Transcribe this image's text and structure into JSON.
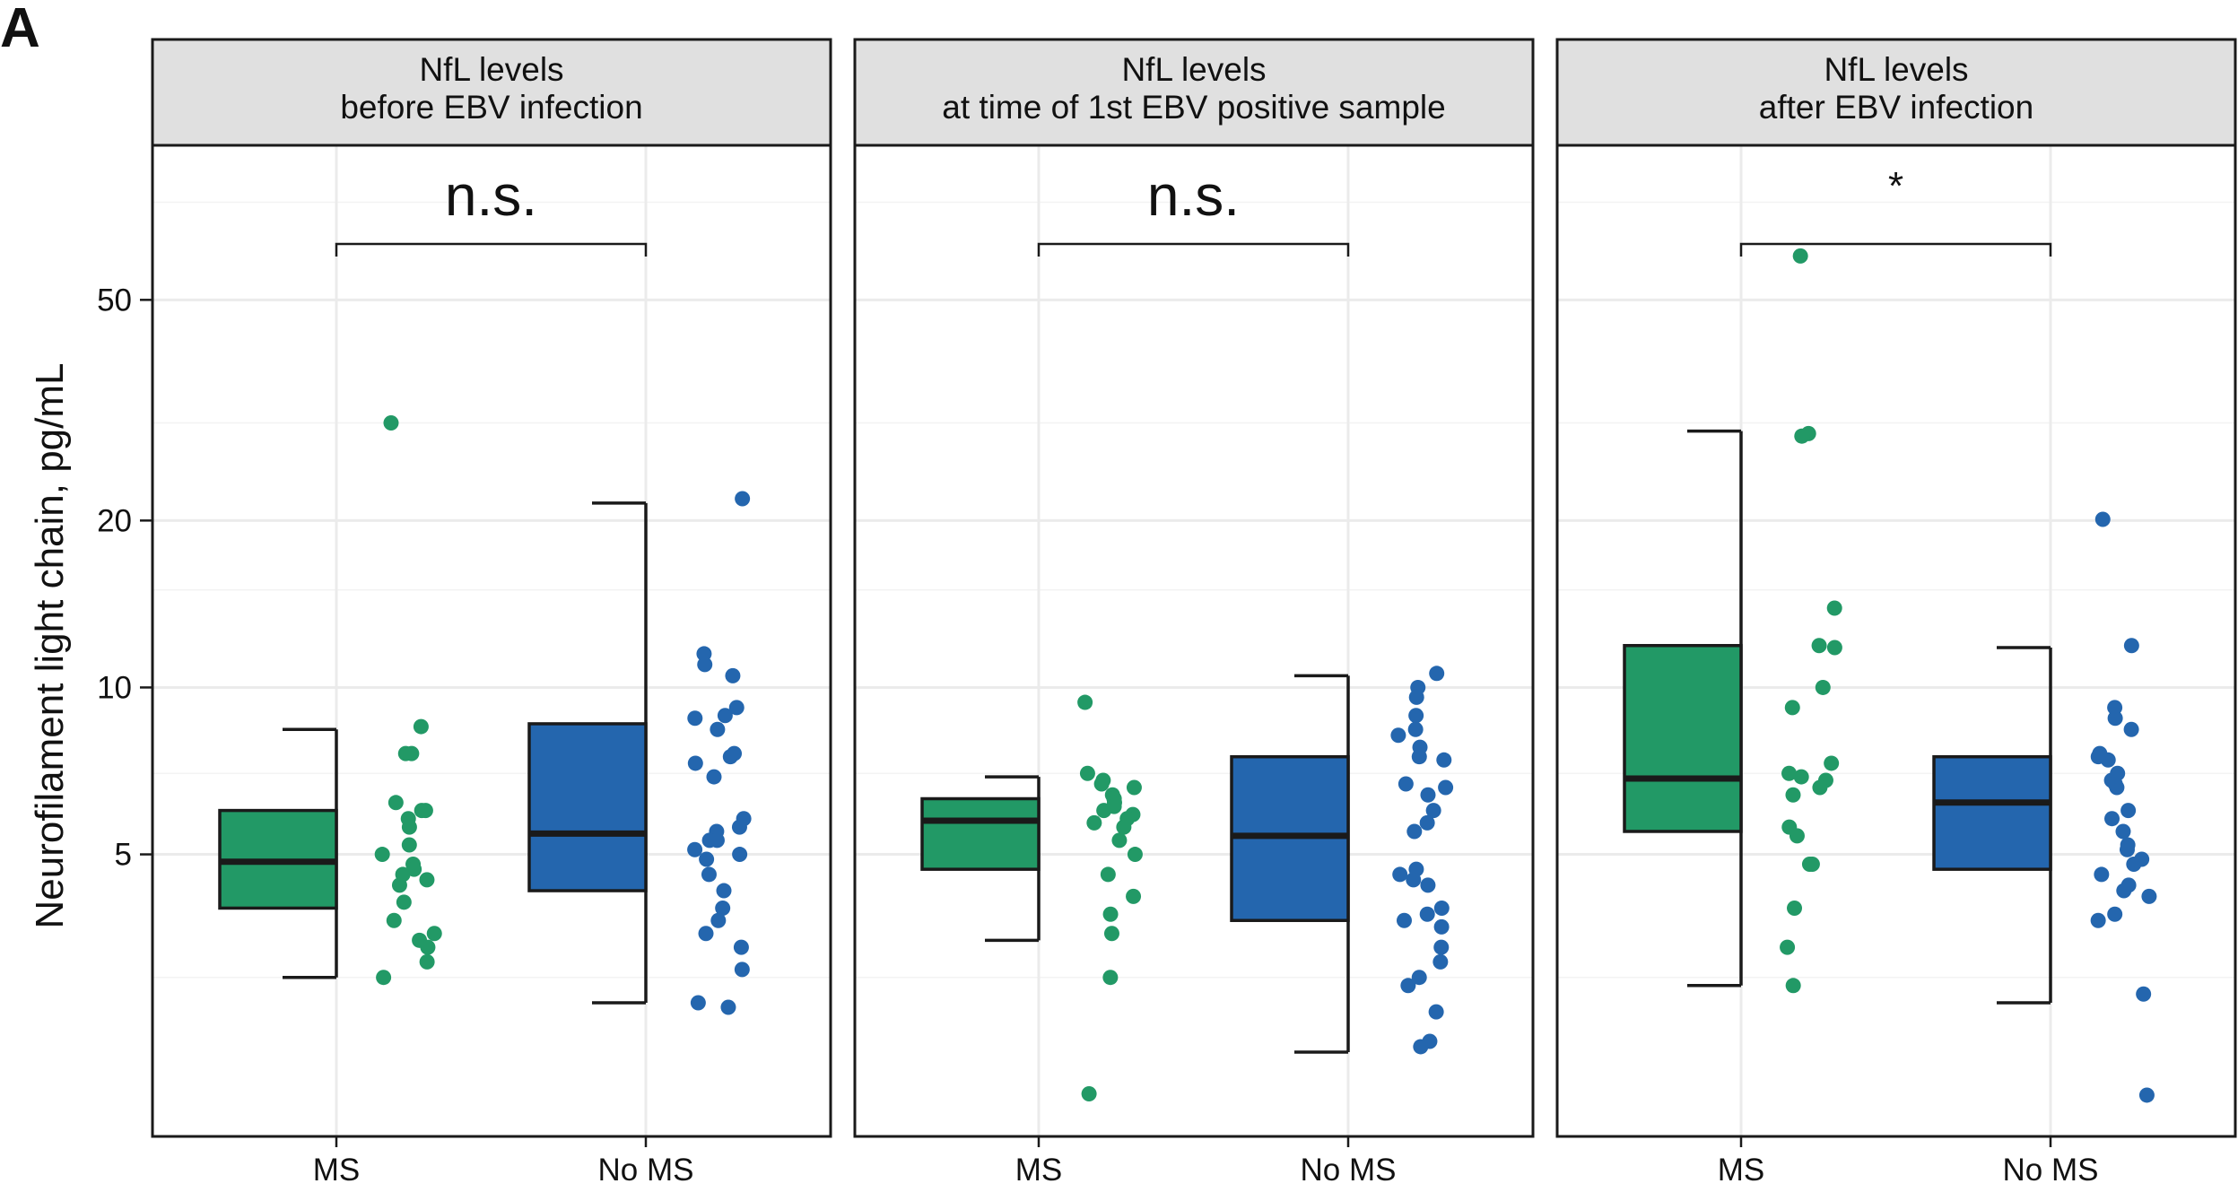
{
  "panel_letter": "A",
  "y_axis_label": "Neurofilament light chain, pg/mL",
  "colors": {
    "ms": "#229966",
    "no_ms": "#2466AE",
    "strip_bg": "#e0e0e0",
    "grid": "#ebebeb",
    "border": "#1a1a1a"
  },
  "chart_data": {
    "type": "box",
    "scale": "log",
    "ylabel": "Neurofilament light chain, pg/mL",
    "ylim": [
      1.55,
      95
    ],
    "yticks": [
      5,
      10,
      20,
      50
    ],
    "ytick_labels": [
      "5",
      "10",
      "20",
      "50"
    ],
    "categories": [
      "MS",
      "No MS"
    ],
    "panels": [
      {
        "strip_title": [
          "NfL levels",
          "before EBV infection"
        ],
        "significance": "n.s.",
        "groups": [
          {
            "name": "MS",
            "box": {
              "whisker_low": 3.0,
              "q1": 4.0,
              "median": 4.85,
              "q3": 6.0,
              "whisker_high": 8.4
            },
            "points": [
              30.0,
              8.5,
              7.6,
              7.6,
              6.2,
              6.0,
              6.0,
              5.8,
              5.6,
              5.2,
              5.0,
              4.8,
              4.7,
              4.6,
              4.5,
              4.4,
              4.1,
              3.8,
              3.6,
              3.5,
              3.4,
              3.2,
              3.0
            ]
          },
          {
            "name": "No MS",
            "box": {
              "whisker_low": 2.7,
              "q1": 4.3,
              "median": 5.45,
              "q3": 8.6,
              "whisker_high": 21.5
            },
            "points": [
              21.9,
              11.5,
              11.0,
              10.5,
              9.2,
              8.9,
              8.8,
              8.4,
              7.6,
              7.5,
              7.3,
              6.9,
              5.8,
              5.6,
              5.5,
              5.3,
              5.3,
              5.1,
              5.0,
              4.9,
              4.6,
              4.3,
              4.0,
              3.8,
              3.6,
              3.4,
              3.1,
              2.7,
              2.65
            ]
          }
        ]
      },
      {
        "strip_title": [
          "NfL levels",
          "at time of 1st EBV positive sample"
        ],
        "significance": "n.s.",
        "groups": [
          {
            "name": "MS",
            "box": {
              "whisker_low": 3.5,
              "q1": 4.7,
              "median": 5.75,
              "q3": 6.3,
              "whisker_high": 6.9
            },
            "points": [
              9.4,
              7.0,
              6.8,
              6.7,
              6.6,
              6.4,
              6.3,
              6.3,
              6.2,
              6.1,
              6.0,
              5.9,
              5.8,
              5.7,
              5.6,
              5.3,
              5.0,
              4.6,
              4.2,
              3.9,
              3.6,
              3.0,
              1.85
            ]
          },
          {
            "name": "No MS",
            "box": {
              "whisker_low": 2.2,
              "q1": 3.8,
              "median": 5.4,
              "q3": 7.5,
              "whisker_high": 10.5
            },
            "points": [
              10.6,
              10.0,
              9.6,
              8.9,
              8.4,
              8.2,
              7.8,
              7.5,
              7.4,
              6.7,
              6.6,
              6.4,
              6.0,
              5.7,
              5.5,
              4.7,
              4.6,
              4.5,
              4.4,
              4.0,
              3.9,
              3.8,
              3.7,
              3.4,
              3.2,
              3.0,
              2.9,
              2.6,
              2.3,
              2.25
            ]
          }
        ]
      },
      {
        "strip_title": [
          "NfL levels",
          "after EBV infection"
        ],
        "significance": "*",
        "groups": [
          {
            "name": "MS",
            "box": {
              "whisker_low": 2.9,
              "q1": 5.5,
              "median": 6.85,
              "q3": 11.9,
              "whisker_high": 29.0
            },
            "points": [
              60.0,
              28.7,
              28.4,
              13.9,
              11.9,
              11.8,
              10.0,
              9.2,
              7.3,
              7.0,
              6.9,
              6.8,
              6.6,
              6.4,
              5.6,
              5.4,
              4.8,
              4.8,
              4.0,
              3.4,
              2.9
            ]
          },
          {
            "name": "No MS",
            "box": {
              "whisker_low": 2.7,
              "q1": 4.7,
              "median": 6.2,
              "q3": 7.5,
              "whisker_high": 11.8
            },
            "points": [
              20.1,
              11.9,
              9.2,
              8.8,
              8.4,
              7.6,
              7.5,
              7.4,
              7.0,
              6.8,
              6.7,
              6.6,
              6.0,
              5.8,
              5.5,
              5.2,
              5.1,
              4.9,
              4.8,
              4.6,
              4.4,
              4.3,
              4.2,
              3.9,
              3.8,
              2.8,
              1.84
            ]
          }
        ]
      }
    ]
  }
}
